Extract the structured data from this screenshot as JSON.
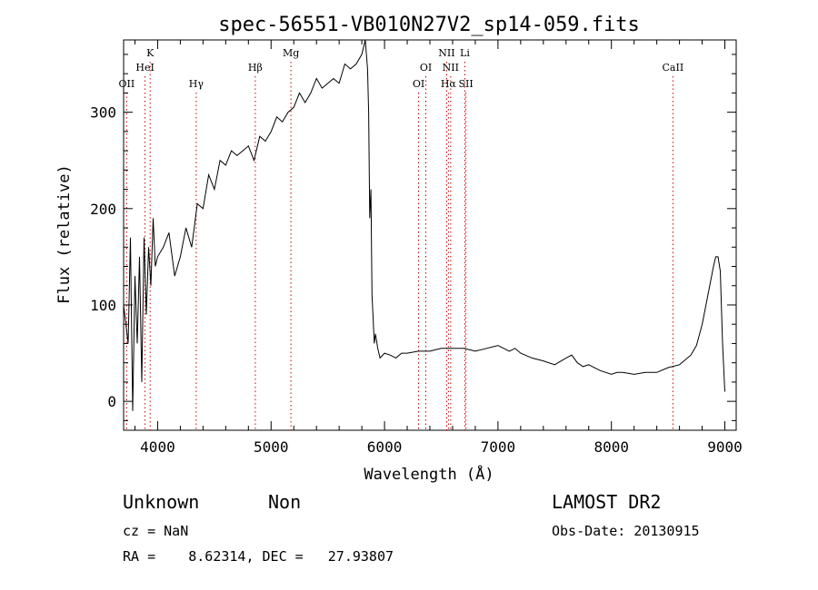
{
  "chart_data": {
    "type": "line",
    "title": "spec-56551-VB010N27V2_sp14-059.fits",
    "xlabel": "Wavelength (Å)",
    "ylabel": "Flux (relative)",
    "xlim": [
      3700,
      9100
    ],
    "ylim": [
      -30,
      375
    ],
    "xticks": [
      4000,
      5000,
      6000,
      7000,
      8000,
      9000
    ],
    "yticks": [
      0,
      100,
      200,
      300
    ],
    "grid": false,
    "series": [
      {
        "x": [
          3700,
          3740,
          3760,
          3780,
          3800,
          3820,
          3840,
          3860,
          3880,
          3900,
          3920,
          3940,
          3960,
          3980,
          4000,
          4050,
          4100,
          4150,
          4200,
          4250,
          4300,
          4350,
          4400,
          4450,
          4500,
          4550,
          4600,
          4650,
          4700,
          4750,
          4800,
          4850,
          4900,
          4950,
          5000,
          5050,
          5100,
          5150,
          5200,
          5250,
          5300,
          5350,
          5400,
          5450,
          5500,
          5550,
          5600,
          5650,
          5700,
          5750,
          5800,
          5830,
          5850,
          5860,
          5870,
          5880,
          5890,
          5900,
          5910,
          5920,
          5940,
          5960,
          6000,
          6050,
          6100,
          6150,
          6200,
          6300,
          6400,
          6500,
          6600,
          6700,
          6800,
          6900,
          7000,
          7100,
          7150,
          7200,
          7300,
          7400,
          7500,
          7600,
          7650,
          7700,
          7750,
          7800,
          7900,
          8000,
          8050,
          8100,
          8200,
          8300,
          8400,
          8500,
          8600,
          8700,
          8750,
          8800,
          8850,
          8900,
          8920,
          8940,
          8960,
          8980,
          9000
        ],
        "y": [
          100,
          60,
          170,
          -10,
          130,
          60,
          150,
          20,
          170,
          90,
          160,
          120,
          190,
          140,
          150,
          160,
          175,
          130,
          150,
          180,
          160,
          205,
          200,
          235,
          220,
          250,
          245,
          260,
          255,
          260,
          265,
          250,
          275,
          270,
          280,
          295,
          290,
          300,
          305,
          320,
          310,
          320,
          335,
          325,
          330,
          335,
          330,
          350,
          345,
          350,
          360,
          375,
          345,
          300,
          190,
          220,
          110,
          85,
          60,
          70,
          55,
          45,
          50,
          48,
          45,
          50,
          50,
          52,
          52,
          55,
          55,
          55,
          52,
          55,
          58,
          52,
          55,
          50,
          45,
          42,
          38,
          45,
          48,
          40,
          36,
          38,
          32,
          28,
          30,
          30,
          28,
          30,
          30,
          35,
          38,
          48,
          58,
          80,
          110,
          140,
          150,
          150,
          135,
          60,
          10
        ]
      }
    ],
    "line_markers": [
      {
        "name": "OII",
        "x": 3727,
        "row": 3
      },
      {
        "name": "K",
        "x": 3934,
        "row": 1
      },
      {
        "name": "HeI",
        "x": 3889,
        "row": 2
      },
      {
        "name": "Hγ",
        "x": 4340,
        "row": 3
      },
      {
        "name": "Hβ",
        "x": 4861,
        "row": 2
      },
      {
        "name": "Mg",
        "x": 5175,
        "row": 1
      },
      {
        "name": "OI",
        "x": 6300,
        "row": 3
      },
      {
        "name": "OI",
        "x": 6364,
        "row": 2
      },
      {
        "name": "NII",
        "x": 6548,
        "row": 1
      },
      {
        "name": "NII",
        "x": 6583,
        "row": 2
      },
      {
        "name": "Hα",
        "x": 6563,
        "row": 3
      },
      {
        "name": "Li",
        "x": 6708,
        "row": 1
      },
      {
        "name": "SII",
        "x": 6717,
        "row": 3
      },
      {
        "name": "CaII",
        "x": 8542,
        "row": 2
      }
    ],
    "marker_color": "#cc0000"
  },
  "info": {
    "class": "Unknown",
    "subclass": "Non",
    "survey": "LAMOST DR2",
    "cz": "cz = NaN",
    "obs_date": "Obs-Date: 20130915",
    "coords": "RA =    8.62314, DEC =   27.93807"
  }
}
